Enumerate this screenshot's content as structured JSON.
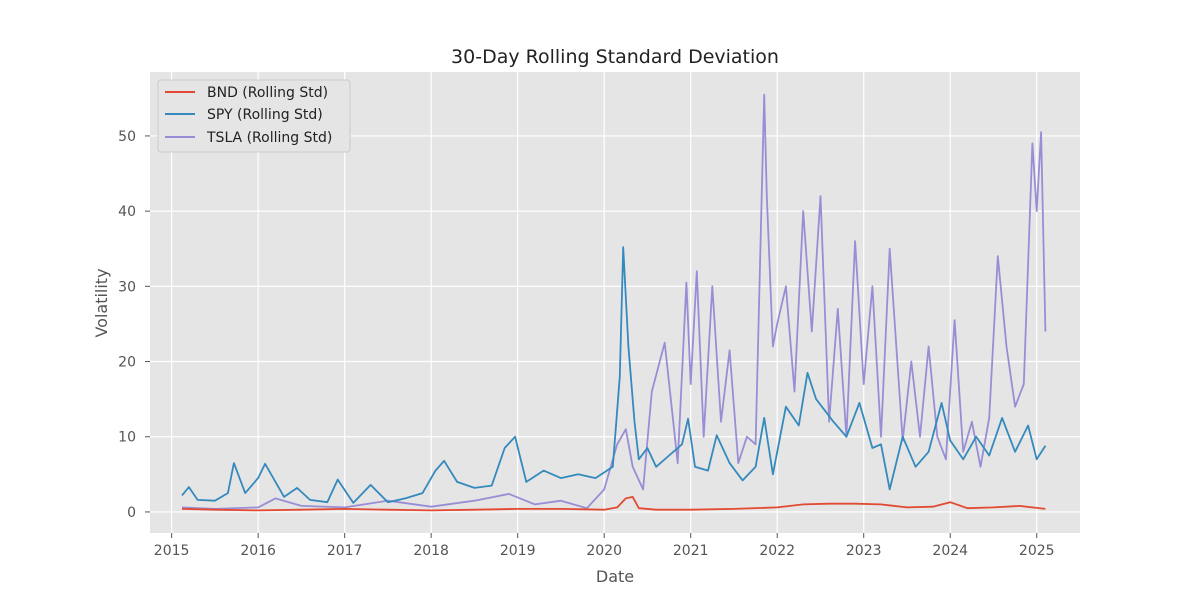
{
  "chart_data": {
    "type": "line",
    "title": "30-Day Rolling Standard Deviation",
    "xlabel": "Date",
    "ylabel": "Volatility",
    "xlim": [
      2014.75,
      2025.5
    ],
    "ylim": [
      -2.8,
      58.5
    ],
    "x_ticks": [
      2015,
      2016,
      2017,
      2018,
      2019,
      2020,
      2021,
      2022,
      2023,
      2024,
      2025
    ],
    "x_tick_labels": [
      "2015",
      "2016",
      "2017",
      "2018",
      "2019",
      "2020",
      "2021",
      "2022",
      "2023",
      "2024",
      "2025"
    ],
    "y_ticks": [
      0,
      10,
      20,
      30,
      40,
      50
    ],
    "y_tick_labels": [
      "0",
      "10",
      "20",
      "30",
      "40",
      "50"
    ],
    "grid": true,
    "legend_position": "top-left",
    "series": [
      {
        "name": "BND (Rolling Std)",
        "color": "#e24a33",
        "x": [
          2015.12,
          2015.5,
          2016.0,
          2016.5,
          2017.0,
          2017.5,
          2018.0,
          2018.5,
          2019.0,
          2019.5,
          2020.0,
          2020.15,
          2020.25,
          2020.33,
          2020.4,
          2020.6,
          2021.0,
          2021.5,
          2022.0,
          2022.3,
          2022.6,
          2022.9,
          2023.2,
          2023.5,
          2023.8,
          2024.0,
          2024.2,
          2024.5,
          2024.8,
          2025.1
        ],
        "y": [
          0.4,
          0.3,
          0.2,
          0.3,
          0.4,
          0.3,
          0.2,
          0.3,
          0.4,
          0.4,
          0.3,
          0.6,
          1.8,
          2.0,
          0.5,
          0.3,
          0.3,
          0.4,
          0.6,
          1.0,
          1.1,
          1.1,
          1.0,
          0.6,
          0.7,
          1.3,
          0.5,
          0.6,
          0.8,
          0.4
        ]
      },
      {
        "name": "SPY (Rolling Std)",
        "color": "#348abd",
        "x": [
          2015.12,
          2015.2,
          2015.3,
          2015.5,
          2015.65,
          2015.72,
          2015.85,
          2016.0,
          2016.08,
          2016.3,
          2016.45,
          2016.6,
          2016.8,
          2016.92,
          2017.1,
          2017.3,
          2017.5,
          2017.7,
          2017.9,
          2018.05,
          2018.15,
          2018.3,
          2018.5,
          2018.7,
          2018.85,
          2018.97,
          2019.1,
          2019.3,
          2019.5,
          2019.7,
          2019.9,
          2020.1,
          2020.18,
          2020.22,
          2020.28,
          2020.35,
          2020.4,
          2020.5,
          2020.6,
          2020.75,
          2020.9,
          2020.97,
          2021.05,
          2021.2,
          2021.3,
          2021.45,
          2021.6,
          2021.75,
          2021.85,
          2021.95,
          2022.1,
          2022.25,
          2022.35,
          2022.45,
          2022.55,
          2022.65,
          2022.8,
          2022.95,
          2023.1,
          2023.2,
          2023.3,
          2023.45,
          2023.6,
          2023.75,
          2023.9,
          2024.0,
          2024.15,
          2024.3,
          2024.45,
          2024.6,
          2024.75,
          2024.9,
          2025.0,
          2025.1
        ],
        "y": [
          2.2,
          3.3,
          1.6,
          1.5,
          2.5,
          6.5,
          2.5,
          4.5,
          6.4,
          2.0,
          3.2,
          1.6,
          1.3,
          4.3,
          1.2,
          3.6,
          1.3,
          1.8,
          2.5,
          5.5,
          6.8,
          4.0,
          3.2,
          3.5,
          8.5,
          10.0,
          4.0,
          5.5,
          4.5,
          5.0,
          4.5,
          6.0,
          18.0,
          35.2,
          22.0,
          12.0,
          7.0,
          8.5,
          6.0,
          7.5,
          9.0,
          12.4,
          6.0,
          5.5,
          10.2,
          6.5,
          4.2,
          6.0,
          12.5,
          5.0,
          14.0,
          11.5,
          18.5,
          15.0,
          13.5,
          12.0,
          10.0,
          14.5,
          8.5,
          9.0,
          3.0,
          10.0,
          6.0,
          8.0,
          14.5,
          9.5,
          7.0,
          10.0,
          7.5,
          12.5,
          8.0,
          11.5,
          7.0,
          8.8
        ]
      },
      {
        "name": "TSLA (Rolling Std)",
        "color": "#988ed5",
        "x": [
          2015.12,
          2015.5,
          2016.0,
          2016.2,
          2016.5,
          2017.0,
          2017.5,
          2018.0,
          2018.5,
          2018.9,
          2019.2,
          2019.5,
          2019.8,
          2020.0,
          2020.15,
          2020.25,
          2020.33,
          2020.45,
          2020.55,
          2020.7,
          2020.85,
          2020.95,
          2021.0,
          2021.07,
          2021.15,
          2021.25,
          2021.35,
          2021.45,
          2021.55,
          2021.65,
          2021.75,
          2021.85,
          2021.88,
          2021.95,
          2022.0,
          2022.1,
          2022.2,
          2022.3,
          2022.4,
          2022.5,
          2022.6,
          2022.7,
          2022.8,
          2022.9,
          2023.0,
          2023.1,
          2023.2,
          2023.3,
          2023.45,
          2023.55,
          2023.65,
          2023.75,
          2023.85,
          2023.95,
          2024.05,
          2024.15,
          2024.25,
          2024.35,
          2024.45,
          2024.55,
          2024.65,
          2024.75,
          2024.85,
          2024.95,
          2025.0,
          2025.05,
          2025.1
        ],
        "y": [
          0.6,
          0.4,
          0.6,
          1.8,
          0.8,
          0.6,
          1.5,
          0.7,
          1.5,
          2.4,
          1.0,
          1.5,
          0.5,
          3.0,
          9.0,
          11.0,
          6.0,
          3.0,
          16.0,
          22.5,
          6.5,
          30.5,
          17.0,
          32.0,
          10.0,
          30.0,
          12.0,
          21.5,
          6.5,
          10.0,
          9.0,
          55.5,
          42.0,
          22.0,
          25.0,
          30.0,
          16.0,
          40.0,
          24.0,
          42.0,
          12.0,
          27.0,
          10.0,
          36.0,
          17.0,
          30.0,
          10.0,
          35.0,
          9.5,
          20.0,
          10.0,
          22.0,
          10.0,
          7.0,
          25.5,
          8.0,
          12.0,
          6.0,
          12.5,
          34.0,
          22.0,
          14.0,
          17.0,
          49.0,
          40.0,
          50.5,
          24.0
        ]
      }
    ]
  }
}
